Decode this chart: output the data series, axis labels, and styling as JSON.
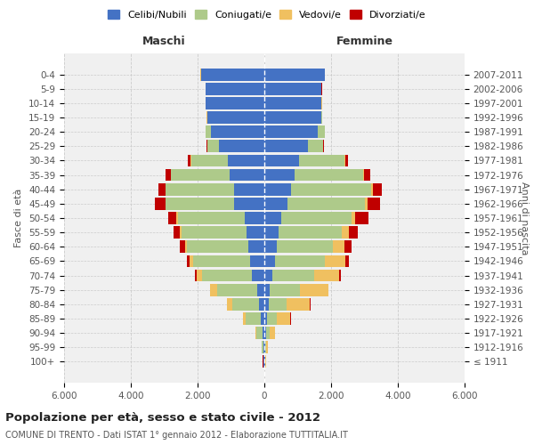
{
  "age_groups": [
    "100+",
    "95-99",
    "90-94",
    "85-89",
    "80-84",
    "75-79",
    "70-74",
    "65-69",
    "60-64",
    "55-59",
    "50-54",
    "45-49",
    "40-44",
    "35-39",
    "30-34",
    "25-29",
    "20-24",
    "15-19",
    "10-14",
    "5-9",
    "0-4"
  ],
  "birth_years": [
    "≤ 1911",
    "1912-1916",
    "1917-1921",
    "1922-1926",
    "1927-1931",
    "1932-1936",
    "1937-1941",
    "1942-1946",
    "1947-1951",
    "1952-1956",
    "1957-1961",
    "1962-1966",
    "1967-1971",
    "1972-1976",
    "1977-1981",
    "1982-1986",
    "1987-1991",
    "1992-1996",
    "1997-2001",
    "2002-2006",
    "2007-2011"
  ],
  "maschi": {
    "celibi": [
      20,
      30,
      60,
      100,
      160,
      220,
      370,
      430,
      480,
      540,
      600,
      900,
      900,
      1050,
      1100,
      1350,
      1600,
      1700,
      1750,
      1750,
      1900
    ],
    "coniugati": [
      15,
      40,
      180,
      450,
      800,
      1200,
      1500,
      1700,
      1850,
      1950,
      2000,
      2050,
      2050,
      1750,
      1100,
      350,
      150,
      20,
      10,
      5,
      5
    ],
    "vedovi": [
      5,
      15,
      30,
      80,
      150,
      200,
      150,
      100,
      50,
      40,
      30,
      20,
      15,
      10,
      5,
      5,
      5,
      5,
      5,
      5,
      5
    ],
    "divorziati": [
      2,
      2,
      2,
      5,
      10,
      20,
      50,
      100,
      150,
      200,
      250,
      300,
      200,
      150,
      80,
      30,
      10,
      5,
      5,
      5,
      5
    ]
  },
  "femmine": {
    "nubili": [
      20,
      30,
      50,
      80,
      120,
      160,
      250,
      320,
      360,
      420,
      500,
      700,
      800,
      900,
      1050,
      1300,
      1600,
      1700,
      1700,
      1700,
      1800
    ],
    "coniugate": [
      10,
      30,
      120,
      300,
      550,
      900,
      1250,
      1500,
      1700,
      1900,
      2100,
      2300,
      2400,
      2050,
      1350,
      450,
      200,
      30,
      15,
      10,
      5
    ],
    "vedove": [
      10,
      40,
      150,
      400,
      700,
      850,
      750,
      600,
      350,
      200,
      130,
      80,
      50,
      30,
      15,
      10,
      5,
      5,
      5,
      5,
      5
    ],
    "divorziate": [
      2,
      2,
      5,
      10,
      15,
      20,
      50,
      100,
      200,
      280,
      380,
      380,
      280,
      180,
      100,
      30,
      10,
      5,
      5,
      5,
      5
    ]
  },
  "colors": {
    "celibi_nubili": "#4472C4",
    "coniugati_e": "#AECA8A",
    "vedovi_e": "#F0C060",
    "divorziati_e": "#C00000"
  },
  "xlim": 6000,
  "title": "Popolazione per età, sesso e stato civile - 2012",
  "subtitle": "COMUNE DI TRENTO - Dati ISTAT 1° gennaio 2012 - Elaborazione TUTTITALIA.IT",
  "xlabel_left": "Maschi",
  "xlabel_right": "Femmine",
  "ylabel_left": "Fasce di età",
  "ylabel_right": "Anni di nascita",
  "bg_color": "#ffffff",
  "grid_color": "#cccccc"
}
